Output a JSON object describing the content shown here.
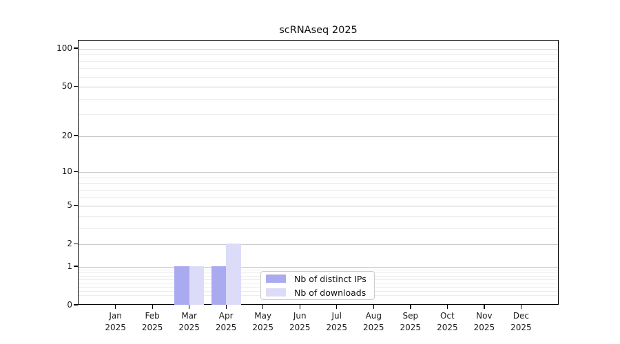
{
  "chart_data": {
    "type": "bar",
    "title": "scRNAseq 2025",
    "categories": [
      "Jan",
      "Feb",
      "Mar",
      "Apr",
      "May",
      "Jun",
      "Jul",
      "Aug",
      "Sep",
      "Oct",
      "Nov",
      "Dec"
    ],
    "year_label": "2025",
    "series": [
      {
        "name": "Nb of distinct IPs",
        "color": "#aaaaf0",
        "values": [
          0,
          0,
          1,
          1,
          0,
          0,
          0,
          0,
          0,
          0,
          0,
          0
        ]
      },
      {
        "name": "Nb of downloads",
        "color": "#dcdcf8",
        "values": [
          0,
          0,
          1,
          2,
          0,
          0,
          0,
          0,
          0,
          0,
          0,
          0
        ]
      }
    ],
    "yscale": "log1p",
    "ylim": [
      0,
      116
    ],
    "yticks": [
      0,
      1,
      2,
      5,
      10,
      20,
      50,
      100
    ],
    "minor_gridline_values": [
      0.2,
      0.3,
      0.4,
      0.5,
      0.6,
      0.7,
      0.8,
      0.9,
      3,
      4,
      6,
      7,
      8,
      9,
      30,
      40,
      60,
      70,
      80,
      90
    ],
    "grid": "horizontal",
    "legend_position": "lower center",
    "colors": {
      "major_grid": "#c9c9c9",
      "minor_grid": "#ededed",
      "axis": "#000000",
      "background": "#ffffff"
    }
  }
}
